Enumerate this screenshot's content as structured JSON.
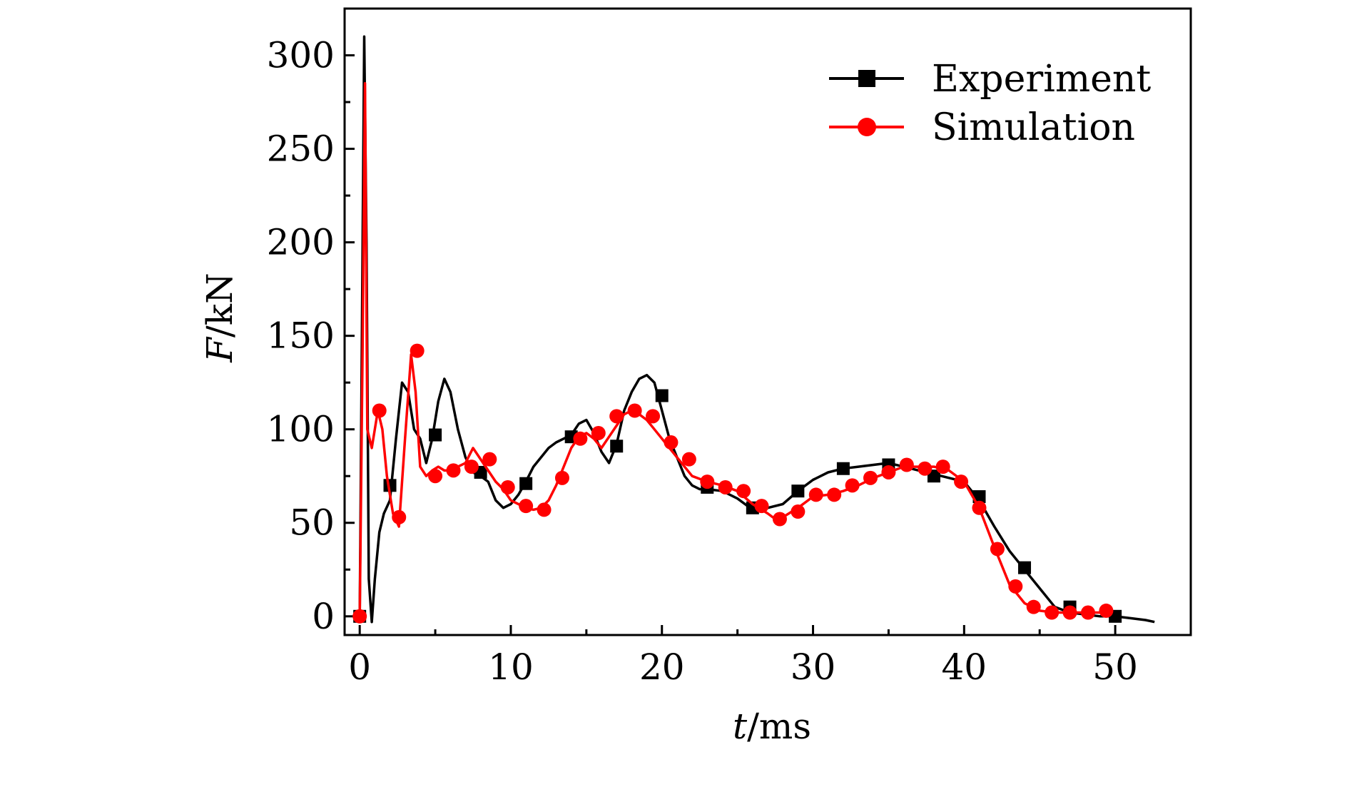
{
  "chart_data": {
    "type": "line",
    "title": "",
    "xlabel": {
      "var": "t",
      "unit": "/ms"
    },
    "ylabel": {
      "var": "F",
      "unit": "/kN"
    },
    "xlim": [
      -1,
      55
    ],
    "ylim": [
      -10,
      325
    ],
    "xticks": [
      0,
      10,
      20,
      30,
      40,
      50
    ],
    "yticks": [
      0,
      50,
      100,
      150,
      200,
      250,
      300
    ],
    "grid": false,
    "legend_position": "top-right",
    "series": [
      {
        "name": "Experiment",
        "color": "#000000",
        "marker": "square",
        "x": [
          0,
          0.3,
          0.45,
          0.6,
          0.8,
          1.0,
          1.3,
          1.6,
          2.0,
          2.4,
          2.8,
          3.2,
          3.6,
          4.0,
          4.4,
          4.8,
          5.2,
          5.6,
          6.0,
          6.5,
          7.0,
          7.5,
          8.0,
          8.5,
          9.0,
          9.5,
          10.0,
          10.5,
          11.0,
          11.5,
          12.0,
          12.5,
          13.0,
          13.5,
          14.0,
          14.5,
          15.0,
          15.5,
          16.0,
          16.5,
          17.0,
          17.5,
          18.0,
          18.5,
          19.0,
          19.5,
          20.0,
          20.5,
          21.0,
          21.5,
          22.0,
          22.5,
          23.0,
          24.0,
          25.0,
          26.0,
          27.0,
          28.0,
          29.0,
          30.0,
          31.0,
          32.0,
          33.0,
          34.0,
          35.0,
          36.0,
          37.0,
          38.0,
          39.0,
          40.0,
          41.0,
          42.0,
          43.0,
          44.0,
          45.0,
          46.0,
          47.0,
          48.0,
          49.0,
          50.0,
          51.0,
          52.0,
          52.6
        ],
        "y": [
          0,
          310,
          200,
          20,
          -3,
          20,
          45,
          55,
          62,
          95,
          125,
          120,
          100,
          95,
          82,
          95,
          115,
          127,
          120,
          100,
          85,
          77,
          75,
          72,
          62,
          58,
          60,
          65,
          72,
          80,
          85,
          90,
          93,
          95,
          97,
          103,
          105,
          98,
          88,
          82,
          92,
          110,
          120,
          127,
          129,
          125,
          110,
          95,
          85,
          75,
          70,
          68,
          68,
          67,
          63,
          57,
          58,
          60,
          67,
          73,
          77,
          79,
          80,
          81,
          82,
          80,
          78,
          76,
          74,
          72,
          62,
          48,
          35,
          25,
          15,
          5,
          2,
          1,
          0,
          0,
          -1,
          -2,
          -3
        ],
        "marker_x": [
          0,
          2,
          5,
          8,
          11,
          14,
          17,
          20,
          23,
          26,
          29,
          32,
          35,
          38,
          41,
          44,
          47,
          50
        ],
        "marker_y": [
          0,
          70,
          97,
          77,
          71,
          96,
          91,
          118,
          69,
          58,
          67,
          79,
          81,
          75,
          64,
          26,
          5,
          0
        ]
      },
      {
        "name": "Simulation",
        "color": "#ff0000",
        "marker": "circle",
        "x": [
          0,
          0.2,
          0.35,
          0.5,
          0.8,
          1.2,
          1.5,
          1.8,
          2.2,
          2.6,
          3.0,
          3.4,
          3.7,
          4.0,
          4.4,
          4.8,
          5.2,
          5.6,
          6.0,
          6.5,
          7.0,
          7.5,
          8.0,
          8.5,
          9.0,
          9.5,
          10.0,
          10.5,
          11.0,
          11.5,
          12.0,
          12.5,
          13.0,
          13.5,
          14.0,
          14.5,
          15.0,
          15.5,
          16.0,
          16.5,
          17.0,
          17.5,
          18.0,
          18.5,
          19.0,
          19.5,
          20.0,
          21.0,
          22.0,
          23.0,
          24.0,
          25.0,
          26.0,
          27.0,
          27.5,
          28.0,
          29.0,
          30.0,
          31.0,
          32.0,
          33.0,
          34.0,
          35.0,
          36.0,
          37.0,
          38.0,
          39.0,
          40.0,
          41.0,
          42.0,
          43.0,
          44.0,
          45.0,
          46.0,
          47.0,
          48.0,
          49.0
        ],
        "y": [
          0,
          150,
          285,
          100,
          90,
          110,
          100,
          75,
          55,
          48,
          95,
          140,
          120,
          80,
          75,
          78,
          80,
          78,
          78,
          80,
          82,
          90,
          84,
          78,
          72,
          68,
          62,
          60,
          58,
          57,
          58,
          62,
          70,
          80,
          90,
          96,
          98,
          95,
          90,
          96,
          102,
          108,
          110,
          108,
          105,
          100,
          95,
          85,
          75,
          72,
          70,
          67,
          60,
          55,
          52,
          53,
          58,
          64,
          65,
          67,
          70,
          74,
          77,
          80,
          80,
          80,
          78,
          72,
          58,
          37,
          17,
          7,
          3,
          2,
          2,
          2,
          2
        ],
        "marker_x": [
          0,
          1.3,
          2.6,
          3.8,
          5,
          6.2,
          7.4,
          8.6,
          9.8,
          11,
          12.2,
          13.4,
          14.6,
          15.8,
          17,
          18.2,
          19.4,
          20.6,
          21.8,
          23,
          24.2,
          25.4,
          26.6,
          27.8,
          29,
          30.2,
          31.4,
          32.6,
          33.8,
          35,
          36.2,
          37.4,
          38.6,
          39.8,
          41,
          42.2,
          43.4,
          44.6,
          45.8,
          47,
          48.2,
          49.4
        ],
        "marker_y": [
          0,
          110,
          53,
          142,
          75,
          78,
          80,
          84,
          69,
          59,
          57,
          74,
          95,
          98,
          107,
          110,
          107,
          93,
          84,
          72,
          69,
          67,
          59,
          52,
          56,
          65,
          65,
          70,
          74,
          77,
          81,
          79,
          80,
          72,
          58,
          36,
          16,
          5,
          2,
          2,
          2,
          3
        ]
      }
    ]
  }
}
